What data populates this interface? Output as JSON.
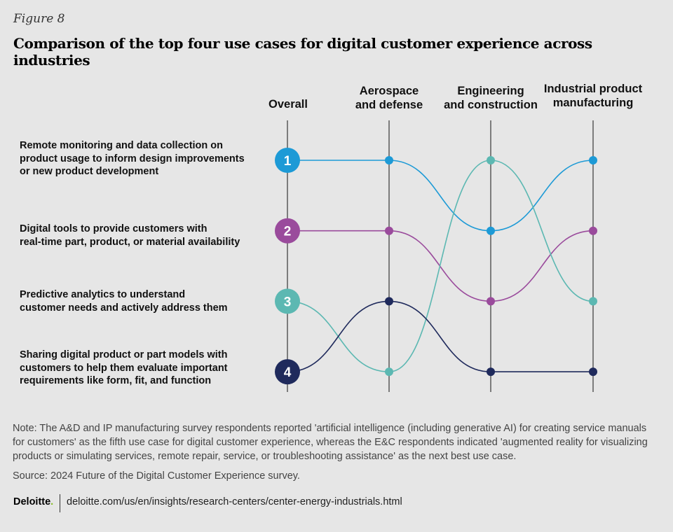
{
  "figure_label": "Figure 8",
  "title": "Comparison of the top four use cases for digital customer experience across industries",
  "chart_data": {
    "type": "bump",
    "title": "Comparison of the top four use cases for digital customer experience across industries",
    "columns": [
      "Overall",
      "Aerospace and defense",
      "Engineering and construction",
      "Industrial product manufacturing"
    ],
    "column_heads": [
      [
        "Overall"
      ],
      [
        "Aerospace",
        "and defense"
      ],
      [
        "Engineering",
        "and construction"
      ],
      [
        "Industrial product",
        "manufacturing"
      ]
    ],
    "rank_range": [
      1,
      4
    ],
    "series": [
      {
        "name": "Remote monitoring and data collection on product usage to inform design improvements or new product development",
        "label_lines": [
          "Remote monitoring and data collection on",
          "product usage to inform design improvements",
          "or new product development"
        ],
        "color": "#1d9ad6",
        "ranks": [
          1,
          1,
          2,
          1
        ]
      },
      {
        "name": "Digital tools to provide customers with real-time part, product, or material availability",
        "label_lines": [
          "Digital tools to provide customers with",
          "real-time part, product, or material availability"
        ],
        "color": "#9a4b9c",
        "ranks": [
          2,
          2,
          3,
          2
        ]
      },
      {
        "name": "Predictive analytics to understand customer needs and actively address them",
        "label_lines": [
          "Predictive analytics to understand",
          "customer needs and actively address them"
        ],
        "color": "#5cb8b2",
        "ranks": [
          3,
          4,
          1,
          3
        ]
      },
      {
        "name": "Sharing digital product or part models with customers to help them evaluate important requirements like form, fit, and function",
        "label_lines": [
          "Sharing digital product or part models with",
          "customers to help them evaluate important",
          "requirements like form, fit, and function"
        ],
        "color": "#1f2a5c",
        "ranks": [
          4,
          3,
          4,
          4
        ]
      }
    ],
    "overall_rank_labels": [
      "1",
      "2",
      "3",
      "4"
    ]
  },
  "note": "Note: The A&D and IP manufacturing survey respondents reported 'artificial intelligence (including generative AI) for creating service manuals for customers' as the fifth use case for digital customer experience, whereas the E&C respondents indicated 'augmented reality for visualizing products or simulating services, remote repair, service, or troubleshooting assistance' as the next best use case.",
  "source": "Source: 2024 Future of the Digital Customer Experience survey.",
  "footer": {
    "logo": "Deloitte",
    "logo_dot": ".",
    "url": "deloitte.com/us/en/insights/research-centers/center-energy-industrials.html"
  }
}
